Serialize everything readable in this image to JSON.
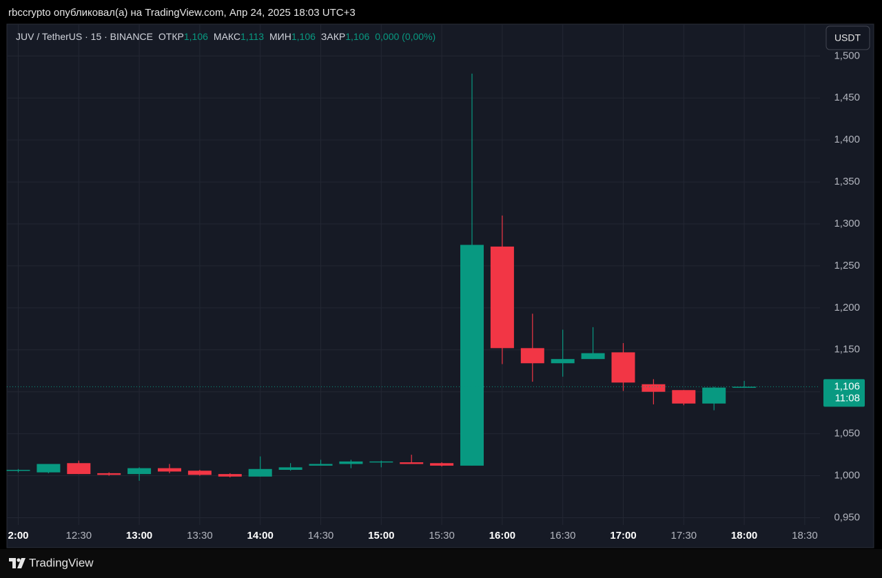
{
  "header": "rbccrypto опубликовал(а) на TradingView.com, Апр 24, 2025 18:03 UTC+3",
  "chart_data": {
    "type": "candlestick",
    "title": "JUV / TetherUS · 15 · BINANCE",
    "ohlc_legend": [
      {
        "label": "ОТКР",
        "value": "1,106"
      },
      {
        "label": "МАКС",
        "value": "1,113"
      },
      {
        "label": "МИН",
        "value": "1,106"
      },
      {
        "label": "ЗАКР",
        "value": "1,106"
      }
    ],
    "change": "0,000 (0,00%)",
    "currency": "USDT",
    "categories": [
      "2:00",
      null,
      "12:30",
      null,
      "13:00",
      null,
      "13:30",
      null,
      "14:00",
      null,
      "14:30",
      null,
      "15:00",
      null,
      "15:30",
      null,
      "16:00",
      null,
      "16:30",
      null,
      "17:00",
      null,
      "17:30",
      null,
      "18:00",
      null,
      "18:30"
    ],
    "open": [
      1.006,
      1.004,
      1.015,
      1.003,
      1.002,
      1.009,
      1.006,
      1.002,
      0.999,
      1.007,
      1.012,
      1.014,
      1.016,
      1.016,
      1.015,
      1.012,
      1.273,
      1.152,
      1.134,
      1.139,
      1.147,
      1.109,
      1.102,
      1.086,
      1.106,
      null,
      null
    ],
    "high": [
      1.008,
      1.014,
      1.018,
      1.004,
      1.01,
      1.014,
      1.007,
      1.003,
      1.023,
      1.015,
      1.019,
      1.019,
      1.018,
      1.025,
      1.016,
      1.479,
      1.31,
      1.193,
      1.174,
      1.177,
      1.158,
      1.115,
      1.102,
      1.106,
      1.113,
      null,
      null
    ],
    "low": [
      1.004,
      1.003,
      1.002,
      1.0,
      0.994,
      1.003,
      1.0,
      0.998,
      0.999,
      1.006,
      1.012,
      1.009,
      1.01,
      1.014,
      1.011,
      1.012,
      1.133,
      1.112,
      1.118,
      1.139,
      1.101,
      1.085,
      1.084,
      1.078,
      1.106,
      null,
      null
    ],
    "close": [
      1.007,
      1.014,
      1.002,
      1.001,
      1.009,
      1.005,
      1.001,
      0.999,
      1.008,
      1.01,
      1.014,
      1.017,
      1.017,
      1.014,
      1.012,
      1.275,
      1.152,
      1.134,
      1.139,
      1.146,
      1.111,
      1.1,
      1.086,
      1.105,
      1.106,
      null,
      null
    ],
    "up_color": "#089981",
    "down_color": "#f23645",
    "ylim": [
      0.943,
      1.538
    ],
    "yticks": [
      {
        "value": 0.95,
        "label": "0,950"
      },
      {
        "value": 1.0,
        "label": "1,000"
      },
      {
        "value": 1.05,
        "label": "1,050"
      },
      {
        "value": 1.1,
        "label": "1,100"
      },
      {
        "value": 1.15,
        "label": "1,150"
      },
      {
        "value": 1.2,
        "label": "1,200"
      },
      {
        "value": 1.25,
        "label": "1,250"
      },
      {
        "value": 1.3,
        "label": "1,300"
      },
      {
        "value": 1.35,
        "label": "1,350"
      },
      {
        "value": 1.4,
        "label": "1,400"
      },
      {
        "value": 1.45,
        "label": "1,450"
      },
      {
        "value": 1.5,
        "label": "1,500"
      }
    ],
    "grid": true,
    "last_price": {
      "value": 1.106,
      "label": "1,106"
    },
    "countdown": "11:08"
  },
  "footer": {
    "brand": "TradingView"
  }
}
